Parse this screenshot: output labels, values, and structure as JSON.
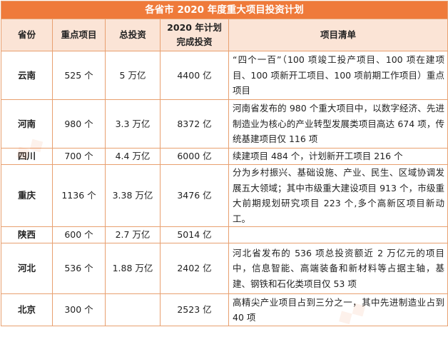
{
  "title": "各省市 2020 年度重大项目投资计划",
  "headers": {
    "province": "省份",
    "key_projects": "重点项目",
    "total_investment": "总投资",
    "plan_line1": "2020 年计划",
    "plan_line2": "完成投资",
    "project_list": "项目清单"
  },
  "rows": [
    {
      "province": "云南",
      "key_projects": "525 个",
      "total_investment": "5 万亿",
      "planned": "4400 亿",
      "description": "“四个一百”（100 项竣工投产项目、100 项在建项目、100 项新开工项目、100 项前期工作项目）重点项目"
    },
    {
      "province": "河南",
      "key_projects": "980 个",
      "total_investment": "3.3 万亿",
      "planned": "8372 亿",
      "description": "河南省发布的 980 个重大项目中，以数字经济、先进制造业为核心的产业转型发展类项目高达 674 项，传统基建项目仅 116 项"
    },
    {
      "province": "四川",
      "key_projects": "700 个",
      "total_investment": "4.4 万亿",
      "planned": "6000 亿",
      "description": "续建项目 484 个，计划新开工项目 216 个"
    },
    {
      "province": "重庆",
      "key_projects": "1136 个",
      "total_investment": "3.38 万亿",
      "planned": "3476 亿",
      "description": "分为乡村振兴、基础设施、产业、民生、区域协调发展五大领域；其中市级重大建设项目 913 个，市级重大前期规划研究项目 223 个,多个高新区项目新动工。"
    },
    {
      "province": "陕西",
      "key_projects": "600 个",
      "total_investment": "2.7 万亿",
      "planned": "5014 亿",
      "description": ""
    },
    {
      "province": "河北",
      "key_projects": "536 个",
      "total_investment": "1.88 万亿",
      "planned": "2402 亿",
      "description": "河北省发布的 536 项总投资额近 2 万亿元的项目中，信息智能、高端装备和新材料等占据主轴，基建、钢铁和石化类项目仅 53 项"
    },
    {
      "province": "北京",
      "key_projects": "300 个",
      "total_investment": "",
      "planned": "2523 亿",
      "description": "高精尖产业项目占到三分之一，其中先进制造业占到 40 项"
    }
  ],
  "colors": {
    "title_bg": "#ef7a3a",
    "header_bg": "#fbe4d6",
    "border": "#e8a070"
  }
}
